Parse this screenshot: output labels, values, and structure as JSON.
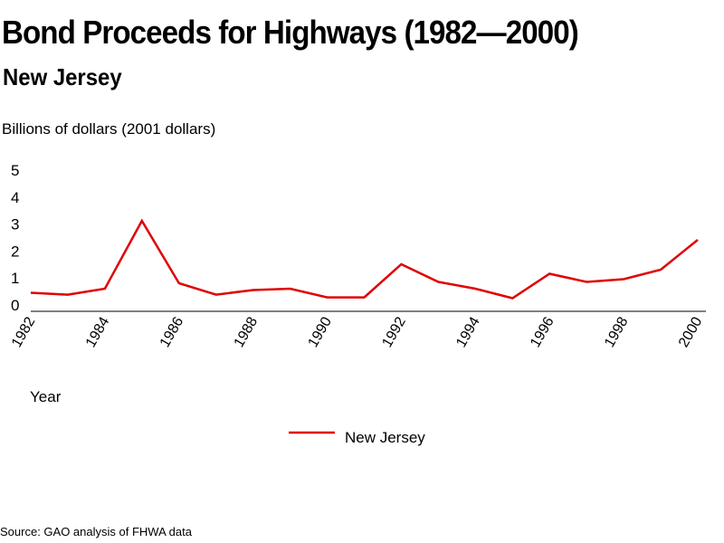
{
  "title": "Bond Proceeds for Highways (1982—2000)",
  "subtitle": "New Jersey",
  "source": "Source: GAO analysis of FHWA data",
  "chart_data": {
    "type": "line",
    "title": "Bond Proceeds for Highways (1982—2000)",
    "subtitle": "New Jersey",
    "xlabel": "Year",
    "ylabel": "Billions of dollars (2001 dollars)",
    "ylim": [
      0,
      5
    ],
    "yticks": [
      "0",
      "1",
      "2",
      "3",
      "4",
      "5"
    ],
    "xticks": [
      "1982",
      "1984",
      "1986",
      "1988",
      "1990",
      "1992",
      "1994",
      "1996",
      "1998",
      "2000"
    ],
    "grid": false,
    "legend_position": "bottom-center",
    "series": [
      {
        "name": "New Jersey",
        "color": "#e00000",
        "x": [
          1982,
          1983,
          1984,
          1985,
          1986,
          1987,
          1988,
          1989,
          1990,
          1991,
          1992,
          1993,
          1994,
          1995,
          1996,
          1997,
          1998,
          1999,
          2000
        ],
        "values": [
          0.45,
          0.38,
          0.6,
          3.1,
          0.8,
          0.38,
          0.55,
          0.6,
          0.28,
          0.28,
          1.5,
          0.85,
          0.6,
          0.25,
          1.15,
          0.85,
          0.95,
          1.3,
          2.4
        ]
      }
    ]
  }
}
